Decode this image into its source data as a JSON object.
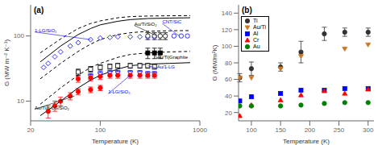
{
  "chart_data": [
    {
      "type": "scatter",
      "title": "(a)",
      "x_label": "Temperature (K)",
      "y_label": "G (MW m⁻² K⁻¹)",
      "log": true,
      "xlim": [
        20,
        1000
      ],
      "ylim": [
        5,
        300
      ],
      "xticks": [
        20,
        100,
        1000
      ],
      "yticks": [
        10,
        100
      ],
      "series": [
        {
          "type": "line",
          "line_style": "dashed",
          "color": "black",
          "x": [
            25,
            40,
            60,
            80,
            100,
            150,
            200,
            300,
            500,
            800
          ],
          "values": [
            55,
            90,
            130,
            155,
            170,
            190,
            198,
            202,
            204,
            205
          ]
        },
        {
          "type": "line",
          "line_style": "dashed",
          "color": "black",
          "x": [
            25,
            40,
            60,
            80,
            100,
            150,
            200,
            300,
            500,
            800
          ],
          "values": [
            22,
            38,
            58,
            75,
            88,
            105,
            112,
            118,
            120,
            121
          ]
        },
        {
          "type": "line",
          "line_style": "dashed",
          "color": "black",
          "x": [
            25,
            40,
            60,
            80,
            100,
            150,
            200,
            300,
            500,
            800
          ],
          "values": [
            9,
            16,
            25,
            33,
            38,
            47,
            52,
            55,
            57,
            58
          ]
        },
        {
          "type": "line",
          "line_style": "solid",
          "color": "black",
          "x": [
            25,
            40,
            60,
            80,
            100,
            150,
            200,
            300,
            500,
            800
          ],
          "values": [
            40,
            70,
            105,
            130,
            148,
            168,
            178,
            185,
            188,
            190
          ]
        },
        {
          "type": "line",
          "line_style": "solid",
          "color": "black",
          "x": [
            25,
            40,
            60,
            80,
            100,
            150,
            200,
            300,
            500,
            800
          ],
          "values": [
            6,
            10,
            16,
            21,
            25,
            31,
            35,
            37,
            38,
            39
          ]
        },
        {
          "type": "scatter",
          "marker": "open_diamond",
          "color": "blue",
          "x": [
            27,
            30,
            35,
            40,
            50,
            60,
            80,
            100,
            125,
            150,
            200,
            250,
            300,
            350
          ],
          "values": [
            33,
            38,
            48,
            57,
            70,
            79,
            88,
            93,
            95,
            97,
            97,
            97,
            96,
            96
          ]
        },
        {
          "type": "scatter",
          "marker": "open_circle",
          "color": "black",
          "x": [
            300,
            350,
            400,
            450
          ],
          "values": [
            100,
            100,
            100,
            100
          ],
          "yerr": [
            12,
            12,
            12,
            12
          ]
        },
        {
          "type": "scatter",
          "marker": "open_circle",
          "color": "blue",
          "x": [
            550,
            650,
            750
          ],
          "values": [
            100,
            100,
            100
          ]
        },
        {
          "type": "scatter",
          "marker": "square",
          "color": "black",
          "x": [
            300,
            350,
            400
          ],
          "values": [
            55,
            55,
            55
          ],
          "yerr": [
            10,
            10,
            10
          ]
        },
        {
          "type": "scatter",
          "marker": "open_square",
          "color": "black",
          "x": [
            60,
            80,
            100,
            125,
            150,
            200,
            250,
            300,
            350
          ],
          "values": [
            28,
            31,
            33,
            34,
            35,
            35,
            35,
            35,
            34
          ],
          "yerr": [
            3,
            3,
            3,
            3,
            3,
            3,
            3,
            3,
            3
          ]
        },
        {
          "type": "scatter",
          "marker": "open_triangle_down",
          "color": "blue",
          "x": [
            80,
            100,
            125,
            150,
            200,
            250,
            300,
            350
          ],
          "values": [
            24,
            26,
            27,
            27,
            27,
            27,
            26,
            26
          ],
          "yerr": [
            2.5,
            2.5,
            2.5,
            2.5,
            2.5,
            2.5,
            2.5,
            2.5
          ]
        },
        {
          "type": "scatter",
          "marker": "circle",
          "color": "red",
          "x": [
            60,
            80,
            100,
            125,
            150,
            200,
            250,
            300,
            350
          ],
          "values": [
            22,
            23,
            24,
            25,
            25,
            25,
            25,
            25,
            25
          ],
          "yerr": [
            2.5,
            2.5,
            2.5,
            2.5,
            2.5,
            2.5,
            2.5,
            2.5,
            2.5
          ]
        },
        {
          "type": "scatter",
          "marker": "circle",
          "color": "red",
          "x": [
            30,
            35,
            40,
            50,
            60,
            80,
            100
          ],
          "values": [
            7,
            8.5,
            10,
            12,
            14,
            15,
            16
          ],
          "yerr": [
            1.5,
            1.5,
            1.5,
            1.5,
            1.5,
            1.5,
            1.5
          ]
        }
      ],
      "annotations": [
        {
          "text": "Au/Ti/SiO₂",
          "xy": [
            370,
            100
          ],
          "xytext": [
            220,
            145
          ],
          "color": "black"
        },
        {
          "text": "CNT/SiC",
          "xy": [
            620,
            100
          ],
          "xytext": [
            420,
            155
          ],
          "color": "blue"
        },
        {
          "text": "Au/Ti|Graphite",
          "xy": [
            350,
            55
          ],
          "xytext": [
            370,
            45
          ],
          "color": "black"
        },
        {
          "text": "Au/1-LG",
          "xy": [
            300,
            35
          ],
          "xytext": [
            370,
            32
          ],
          "color": "blue"
        },
        {
          "text": "1-LG/SiO₂",
          "xy": [
            80,
            88
          ],
          "xytext": [
            22,
            115
          ],
          "color": "blue"
        },
        {
          "text": "1-LG/SiO₂",
          "xy": [
            200,
            25
          ],
          "xytext": [
            120,
            13
          ],
          "color": "blue"
        },
        {
          "text": "Au/Ti/n-LG/SiO₂",
          "xy": [
            55,
            12
          ],
          "xytext": [
            22,
            7.5
          ],
          "color": "black"
        }
      ]
    },
    {
      "type": "scatter",
      "title": "(b)",
      "x_label": "Temperature (K)",
      "y_label": "G (MW/m²K)",
      "xlim": [
        78,
        310
      ],
      "ylim": [
        10,
        150
      ],
      "xticks": [
        100,
        150,
        200,
        250,
        300
      ],
      "yticks": [
        20,
        40,
        60,
        80,
        100,
        120,
        140
      ],
      "legend": "upper left",
      "x": [
        80,
        100,
        150,
        185,
        225,
        260,
        300
      ],
      "series": [
        {
          "name": "Ti",
          "color": "#333333",
          "marker": "circle",
          "values": [
            62,
            73,
            75,
            93,
            115,
            117,
            117
          ],
          "yerr": [
            5,
            8,
            5,
            13,
            8,
            5,
            5
          ]
        },
        {
          "name": "Au/Ti",
          "color": "#cc7722",
          "marker": "triangle_down",
          "values": [
            62,
            62,
            73,
            88,
            null,
            97,
            102
          ]
        },
        {
          "name": "Al",
          "color": "blue",
          "marker": "square",
          "values": [
            34,
            39,
            43,
            47,
            47,
            49,
            49
          ]
        },
        {
          "name": "Cr",
          "color": "red",
          "marker": "triangle_up",
          "values": [
            16,
            29,
            35,
            41,
            46,
            43,
            48
          ]
        },
        {
          "name": "Au",
          "color": "green",
          "marker": "circle",
          "values": [
            28,
            28,
            28,
            29,
            31,
            32,
            32
          ]
        }
      ]
    }
  ]
}
